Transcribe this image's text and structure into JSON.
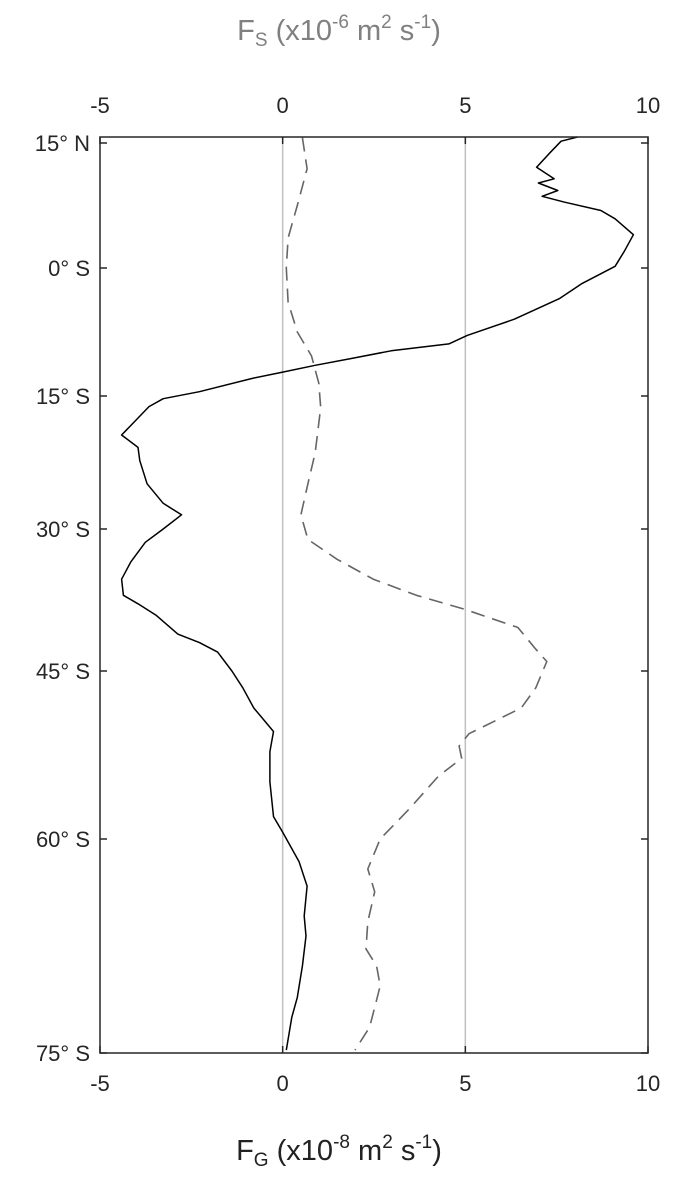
{
  "chart_data": {
    "type": "line",
    "top_axis": {
      "label_parts": [
        {
          "t": "F",
          "k": "n"
        },
        {
          "t": "S",
          "k": "sub"
        },
        {
          "t": " (x10",
          "k": "n"
        },
        {
          "t": "-6",
          "k": "sup"
        },
        {
          "t": " m",
          "k": "n"
        },
        {
          "t": "2",
          "k": "sup"
        },
        {
          "t": " s",
          "k": "n"
        },
        {
          "t": "-1",
          "k": "sup"
        },
        {
          "t": ")",
          "k": "n"
        }
      ],
      "color": "#808080",
      "ticks": [
        -5,
        0,
        5,
        10
      ],
      "tick_labels": [
        "-5",
        "0",
        "5",
        "10"
      ],
      "xlim": [
        -5,
        10
      ]
    },
    "bottom_axis": {
      "label_parts": [
        {
          "t": "F",
          "k": "n"
        },
        {
          "t": "G",
          "k": "sub"
        },
        {
          "t": " (x10",
          "k": "n"
        },
        {
          "t": "-8",
          "k": "sup"
        },
        {
          "t": " m",
          "k": "n"
        },
        {
          "t": "2",
          "k": "sup"
        },
        {
          "t": " s",
          "k": "n"
        },
        {
          "t": "-1",
          "k": "sup"
        },
        {
          "t": ")",
          "k": "n"
        }
      ],
      "ticks": [
        -5,
        0,
        5,
        10
      ],
      "tick_labels": [
        "-5",
        "0",
        "5",
        "10"
      ],
      "xlim": [
        -5,
        10
      ]
    },
    "y_axis": {
      "ticks": [
        15,
        0,
        -15,
        -30,
        -45,
        -60,
        -75
      ],
      "tick_labels": [
        "15° N",
        "0° S",
        "15° S",
        "30° S",
        "45° S",
        "60° S",
        "75° S"
      ],
      "ylim": [
        -75,
        16
      ]
    },
    "reference_lines_x": [
      0,
      5
    ],
    "series": [
      {
        "axis": "bottom",
        "style": "solid",
        "color": "#000000",
        "points": [
          [
            8.07,
            16
          ],
          [
            7.62,
            15.3
          ],
          [
            7.33,
            13.9
          ],
          [
            6.95,
            12.1
          ],
          [
            7.43,
            10.7
          ],
          [
            7.0,
            10.2
          ],
          [
            7.53,
            9.3
          ],
          [
            7.1,
            8.6
          ],
          [
            7.72,
            7.9
          ],
          [
            8.71,
            6.9
          ],
          [
            9.1,
            5.9
          ],
          [
            9.6,
            4.0
          ],
          [
            9.35,
            2.0
          ],
          [
            9.1,
            0.2
          ],
          [
            8.2,
            -1.8
          ],
          [
            7.57,
            -3.6
          ],
          [
            6.34,
            -6.0
          ],
          [
            5.05,
            -7.9
          ],
          [
            4.55,
            -8.9
          ],
          [
            2.97,
            -9.7
          ],
          [
            1.88,
            -10.6
          ],
          [
            0.89,
            -11.4
          ],
          [
            0,
            -12.2
          ],
          [
            -0.8,
            -12.9
          ],
          [
            -2.28,
            -14.5
          ],
          [
            -3.27,
            -15.3
          ],
          [
            -3.66,
            -16.2
          ],
          [
            -4.41,
            -19.4
          ],
          [
            -3.96,
            -20.8
          ],
          [
            -3.91,
            -22.3
          ],
          [
            -3.71,
            -24.9
          ],
          [
            -3.27,
            -27.1
          ],
          [
            -2.77,
            -28.4
          ],
          [
            -3.27,
            -30
          ],
          [
            -3.76,
            -31.4
          ],
          [
            -4.16,
            -33.5
          ],
          [
            -4.41,
            -35.3
          ],
          [
            -4.36,
            -37.0
          ],
          [
            -3.96,
            -37.9
          ],
          [
            -3.47,
            -39.1
          ],
          [
            -2.87,
            -41.1
          ],
          [
            -2.28,
            -42.0
          ],
          [
            -1.78,
            -43.0
          ],
          [
            -1.39,
            -45.0
          ],
          [
            -1.09,
            -46.5
          ],
          [
            -0.79,
            -48.3
          ],
          [
            -0.25,
            -50.4
          ],
          [
            -0.35,
            -52.2
          ],
          [
            -0.35,
            -54.9
          ],
          [
            -0.25,
            -58.0
          ],
          [
            0,
            -59.4
          ],
          [
            0.45,
            -61.6
          ],
          [
            0.67,
            -63.3
          ],
          [
            0.59,
            -65.4
          ],
          [
            0.64,
            -66.8
          ],
          [
            0.54,
            -68.9
          ],
          [
            0.4,
            -71.1
          ],
          [
            0.25,
            -72.5
          ],
          [
            0.1,
            -74.8
          ]
        ]
      },
      {
        "axis": "top",
        "style": "dashed",
        "color": "#666666",
        "points": [
          [
            0.54,
            15.9
          ],
          [
            0.67,
            11.9
          ],
          [
            0.4,
            7.5
          ],
          [
            0.15,
            3.6
          ],
          [
            0.1,
            0
          ],
          [
            0.15,
            -4.0
          ],
          [
            0.4,
            -7.5
          ],
          [
            0.79,
            -10.3
          ],
          [
            0.99,
            -13.5
          ],
          [
            1.04,
            -16.3
          ],
          [
            0.89,
            -21.4
          ],
          [
            0.69,
            -24.9
          ],
          [
            0.5,
            -28.4
          ],
          [
            0.69,
            -31.1
          ],
          [
            1.49,
            -33.2
          ],
          [
            2.48,
            -35.3
          ],
          [
            3.66,
            -37.0
          ],
          [
            5.0,
            -38.5
          ],
          [
            6.44,
            -40.4
          ],
          [
            6.93,
            -42.7
          ],
          [
            7.23,
            -44.0
          ],
          [
            6.93,
            -46.5
          ],
          [
            6.53,
            -48.3
          ],
          [
            5.1,
            -50.6
          ],
          [
            4.83,
            -51.7
          ],
          [
            4.9,
            -52.8
          ],
          [
            4.26,
            -54.4
          ],
          [
            3.47,
            -57.3
          ],
          [
            2.67,
            -60
          ],
          [
            2.33,
            -62.1
          ],
          [
            2.52,
            -63.7
          ],
          [
            2.33,
            -65.8
          ],
          [
            2.28,
            -67.7
          ],
          [
            2.57,
            -68.9
          ],
          [
            2.67,
            -70.3
          ],
          [
            2.38,
            -73.2
          ],
          [
            1.98,
            -74.8
          ]
        ]
      }
    ]
  }
}
